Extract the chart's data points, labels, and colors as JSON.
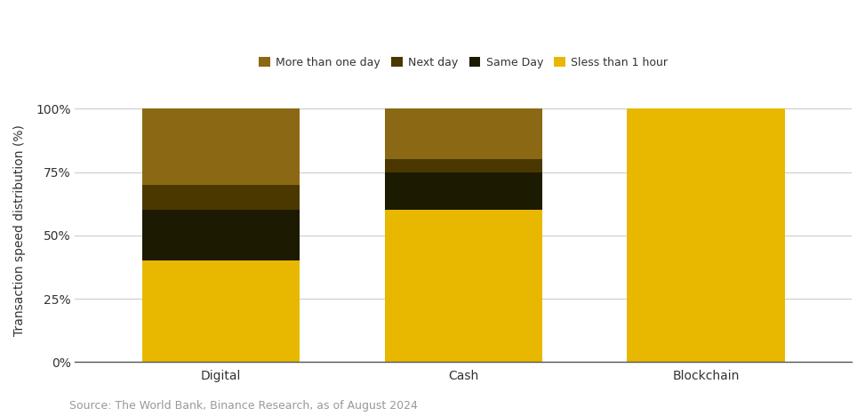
{
  "categories": [
    "Digital",
    "Cash",
    "Blockchain"
  ],
  "series": {
    "Less than 1 hour": [
      40,
      60,
      100
    ],
    "Same Day": [
      20,
      15,
      0
    ],
    "Next day": [
      10,
      5,
      0
    ],
    "More than one day": [
      30,
      20,
      0
    ]
  },
  "legend_labels": [
    "More than one day",
    "Next day",
    "Same Day",
    "Sless than 1 hour"
  ],
  "colors": {
    "Less than 1 hour": "#E8B800",
    "Same Day": "#1C1A00",
    "Next day": "#4A3800",
    "More than one day": "#8B6914"
  },
  "legend_colors": {
    "More than one day": "#8B6914",
    "Next day": "#4A3800",
    "Same Day": "#1C1A00",
    "Sless than 1 hour": "#E8B800"
  },
  "ylabel": "Transaction speed distribution (%)",
  "yticks": [
    0,
    25,
    50,
    75,
    100
  ],
  "ytick_labels": [
    "0%",
    "25%",
    "50%",
    "75%",
    "100%"
  ],
  "source_text": "Source: The World Bank, Binance Research, as of August 2024",
  "background_color": "#FFFFFF",
  "bar_width": 0.65,
  "grid_color": "#CCCCCC",
  "label_fontsize": 10,
  "legend_fontsize": 9,
  "source_fontsize": 9
}
